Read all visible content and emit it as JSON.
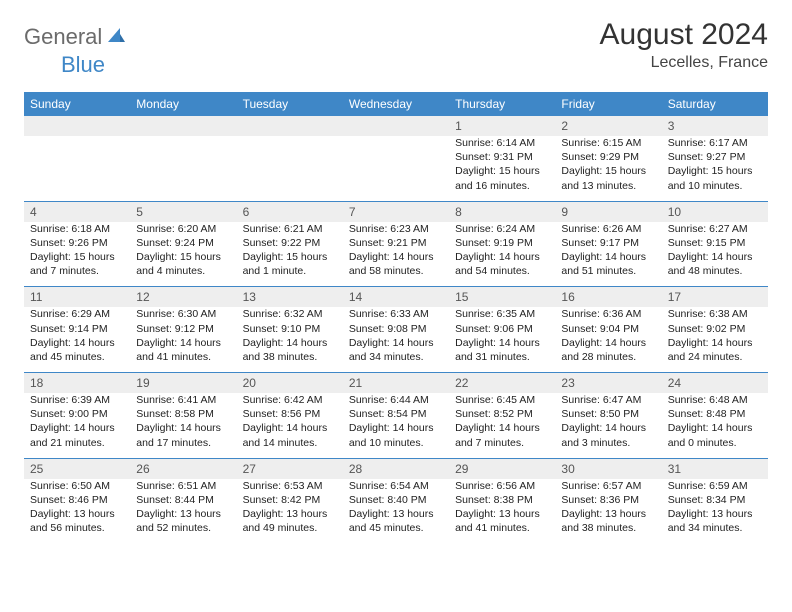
{
  "brand": {
    "general": "General",
    "blue": "Blue"
  },
  "title": "August 2024",
  "location": "Lecelles, France",
  "colors": {
    "header_bg": "#3f87c7",
    "header_fg": "#ffffff",
    "daynum_bg": "#eeeeee",
    "row_divider": "#3f87c7",
    "logo_gray": "#6b6b6b",
    "logo_blue": "#3f87c7",
    "page_bg": "#ffffff"
  },
  "weekdays": [
    "Sunday",
    "Monday",
    "Tuesday",
    "Wednesday",
    "Thursday",
    "Friday",
    "Saturday"
  ],
  "weeks": [
    {
      "nums": [
        "",
        "",
        "",
        "",
        "1",
        "2",
        "3"
      ],
      "cells": [
        null,
        null,
        null,
        null,
        {
          "sunrise": "Sunrise: 6:14 AM",
          "sunset": "Sunset: 9:31 PM",
          "daylight": "Daylight: 15 hours and 16 minutes."
        },
        {
          "sunrise": "Sunrise: 6:15 AM",
          "sunset": "Sunset: 9:29 PM",
          "daylight": "Daylight: 15 hours and 13 minutes."
        },
        {
          "sunrise": "Sunrise: 6:17 AM",
          "sunset": "Sunset: 9:27 PM",
          "daylight": "Daylight: 15 hours and 10 minutes."
        }
      ]
    },
    {
      "nums": [
        "4",
        "5",
        "6",
        "7",
        "8",
        "9",
        "10"
      ],
      "cells": [
        {
          "sunrise": "Sunrise: 6:18 AM",
          "sunset": "Sunset: 9:26 PM",
          "daylight": "Daylight: 15 hours and 7 minutes."
        },
        {
          "sunrise": "Sunrise: 6:20 AM",
          "sunset": "Sunset: 9:24 PM",
          "daylight": "Daylight: 15 hours and 4 minutes."
        },
        {
          "sunrise": "Sunrise: 6:21 AM",
          "sunset": "Sunset: 9:22 PM",
          "daylight": "Daylight: 15 hours and 1 minute."
        },
        {
          "sunrise": "Sunrise: 6:23 AM",
          "sunset": "Sunset: 9:21 PM",
          "daylight": "Daylight: 14 hours and 58 minutes."
        },
        {
          "sunrise": "Sunrise: 6:24 AM",
          "sunset": "Sunset: 9:19 PM",
          "daylight": "Daylight: 14 hours and 54 minutes."
        },
        {
          "sunrise": "Sunrise: 6:26 AM",
          "sunset": "Sunset: 9:17 PM",
          "daylight": "Daylight: 14 hours and 51 minutes."
        },
        {
          "sunrise": "Sunrise: 6:27 AM",
          "sunset": "Sunset: 9:15 PM",
          "daylight": "Daylight: 14 hours and 48 minutes."
        }
      ]
    },
    {
      "nums": [
        "11",
        "12",
        "13",
        "14",
        "15",
        "16",
        "17"
      ],
      "cells": [
        {
          "sunrise": "Sunrise: 6:29 AM",
          "sunset": "Sunset: 9:14 PM",
          "daylight": "Daylight: 14 hours and 45 minutes."
        },
        {
          "sunrise": "Sunrise: 6:30 AM",
          "sunset": "Sunset: 9:12 PM",
          "daylight": "Daylight: 14 hours and 41 minutes."
        },
        {
          "sunrise": "Sunrise: 6:32 AM",
          "sunset": "Sunset: 9:10 PM",
          "daylight": "Daylight: 14 hours and 38 minutes."
        },
        {
          "sunrise": "Sunrise: 6:33 AM",
          "sunset": "Sunset: 9:08 PM",
          "daylight": "Daylight: 14 hours and 34 minutes."
        },
        {
          "sunrise": "Sunrise: 6:35 AM",
          "sunset": "Sunset: 9:06 PM",
          "daylight": "Daylight: 14 hours and 31 minutes."
        },
        {
          "sunrise": "Sunrise: 6:36 AM",
          "sunset": "Sunset: 9:04 PM",
          "daylight": "Daylight: 14 hours and 28 minutes."
        },
        {
          "sunrise": "Sunrise: 6:38 AM",
          "sunset": "Sunset: 9:02 PM",
          "daylight": "Daylight: 14 hours and 24 minutes."
        }
      ]
    },
    {
      "nums": [
        "18",
        "19",
        "20",
        "21",
        "22",
        "23",
        "24"
      ],
      "cells": [
        {
          "sunrise": "Sunrise: 6:39 AM",
          "sunset": "Sunset: 9:00 PM",
          "daylight": "Daylight: 14 hours and 21 minutes."
        },
        {
          "sunrise": "Sunrise: 6:41 AM",
          "sunset": "Sunset: 8:58 PM",
          "daylight": "Daylight: 14 hours and 17 minutes."
        },
        {
          "sunrise": "Sunrise: 6:42 AM",
          "sunset": "Sunset: 8:56 PM",
          "daylight": "Daylight: 14 hours and 14 minutes."
        },
        {
          "sunrise": "Sunrise: 6:44 AM",
          "sunset": "Sunset: 8:54 PM",
          "daylight": "Daylight: 14 hours and 10 minutes."
        },
        {
          "sunrise": "Sunrise: 6:45 AM",
          "sunset": "Sunset: 8:52 PM",
          "daylight": "Daylight: 14 hours and 7 minutes."
        },
        {
          "sunrise": "Sunrise: 6:47 AM",
          "sunset": "Sunset: 8:50 PM",
          "daylight": "Daylight: 14 hours and 3 minutes."
        },
        {
          "sunrise": "Sunrise: 6:48 AM",
          "sunset": "Sunset: 8:48 PM",
          "daylight": "Daylight: 14 hours and 0 minutes."
        }
      ]
    },
    {
      "nums": [
        "25",
        "26",
        "27",
        "28",
        "29",
        "30",
        "31"
      ],
      "cells": [
        {
          "sunrise": "Sunrise: 6:50 AM",
          "sunset": "Sunset: 8:46 PM",
          "daylight": "Daylight: 13 hours and 56 minutes."
        },
        {
          "sunrise": "Sunrise: 6:51 AM",
          "sunset": "Sunset: 8:44 PM",
          "daylight": "Daylight: 13 hours and 52 minutes."
        },
        {
          "sunrise": "Sunrise: 6:53 AM",
          "sunset": "Sunset: 8:42 PM",
          "daylight": "Daylight: 13 hours and 49 minutes."
        },
        {
          "sunrise": "Sunrise: 6:54 AM",
          "sunset": "Sunset: 8:40 PM",
          "daylight": "Daylight: 13 hours and 45 minutes."
        },
        {
          "sunrise": "Sunrise: 6:56 AM",
          "sunset": "Sunset: 8:38 PM",
          "daylight": "Daylight: 13 hours and 41 minutes."
        },
        {
          "sunrise": "Sunrise: 6:57 AM",
          "sunset": "Sunset: 8:36 PM",
          "daylight": "Daylight: 13 hours and 38 minutes."
        },
        {
          "sunrise": "Sunrise: 6:59 AM",
          "sunset": "Sunset: 8:34 PM",
          "daylight": "Daylight: 13 hours and 34 minutes."
        }
      ]
    }
  ]
}
